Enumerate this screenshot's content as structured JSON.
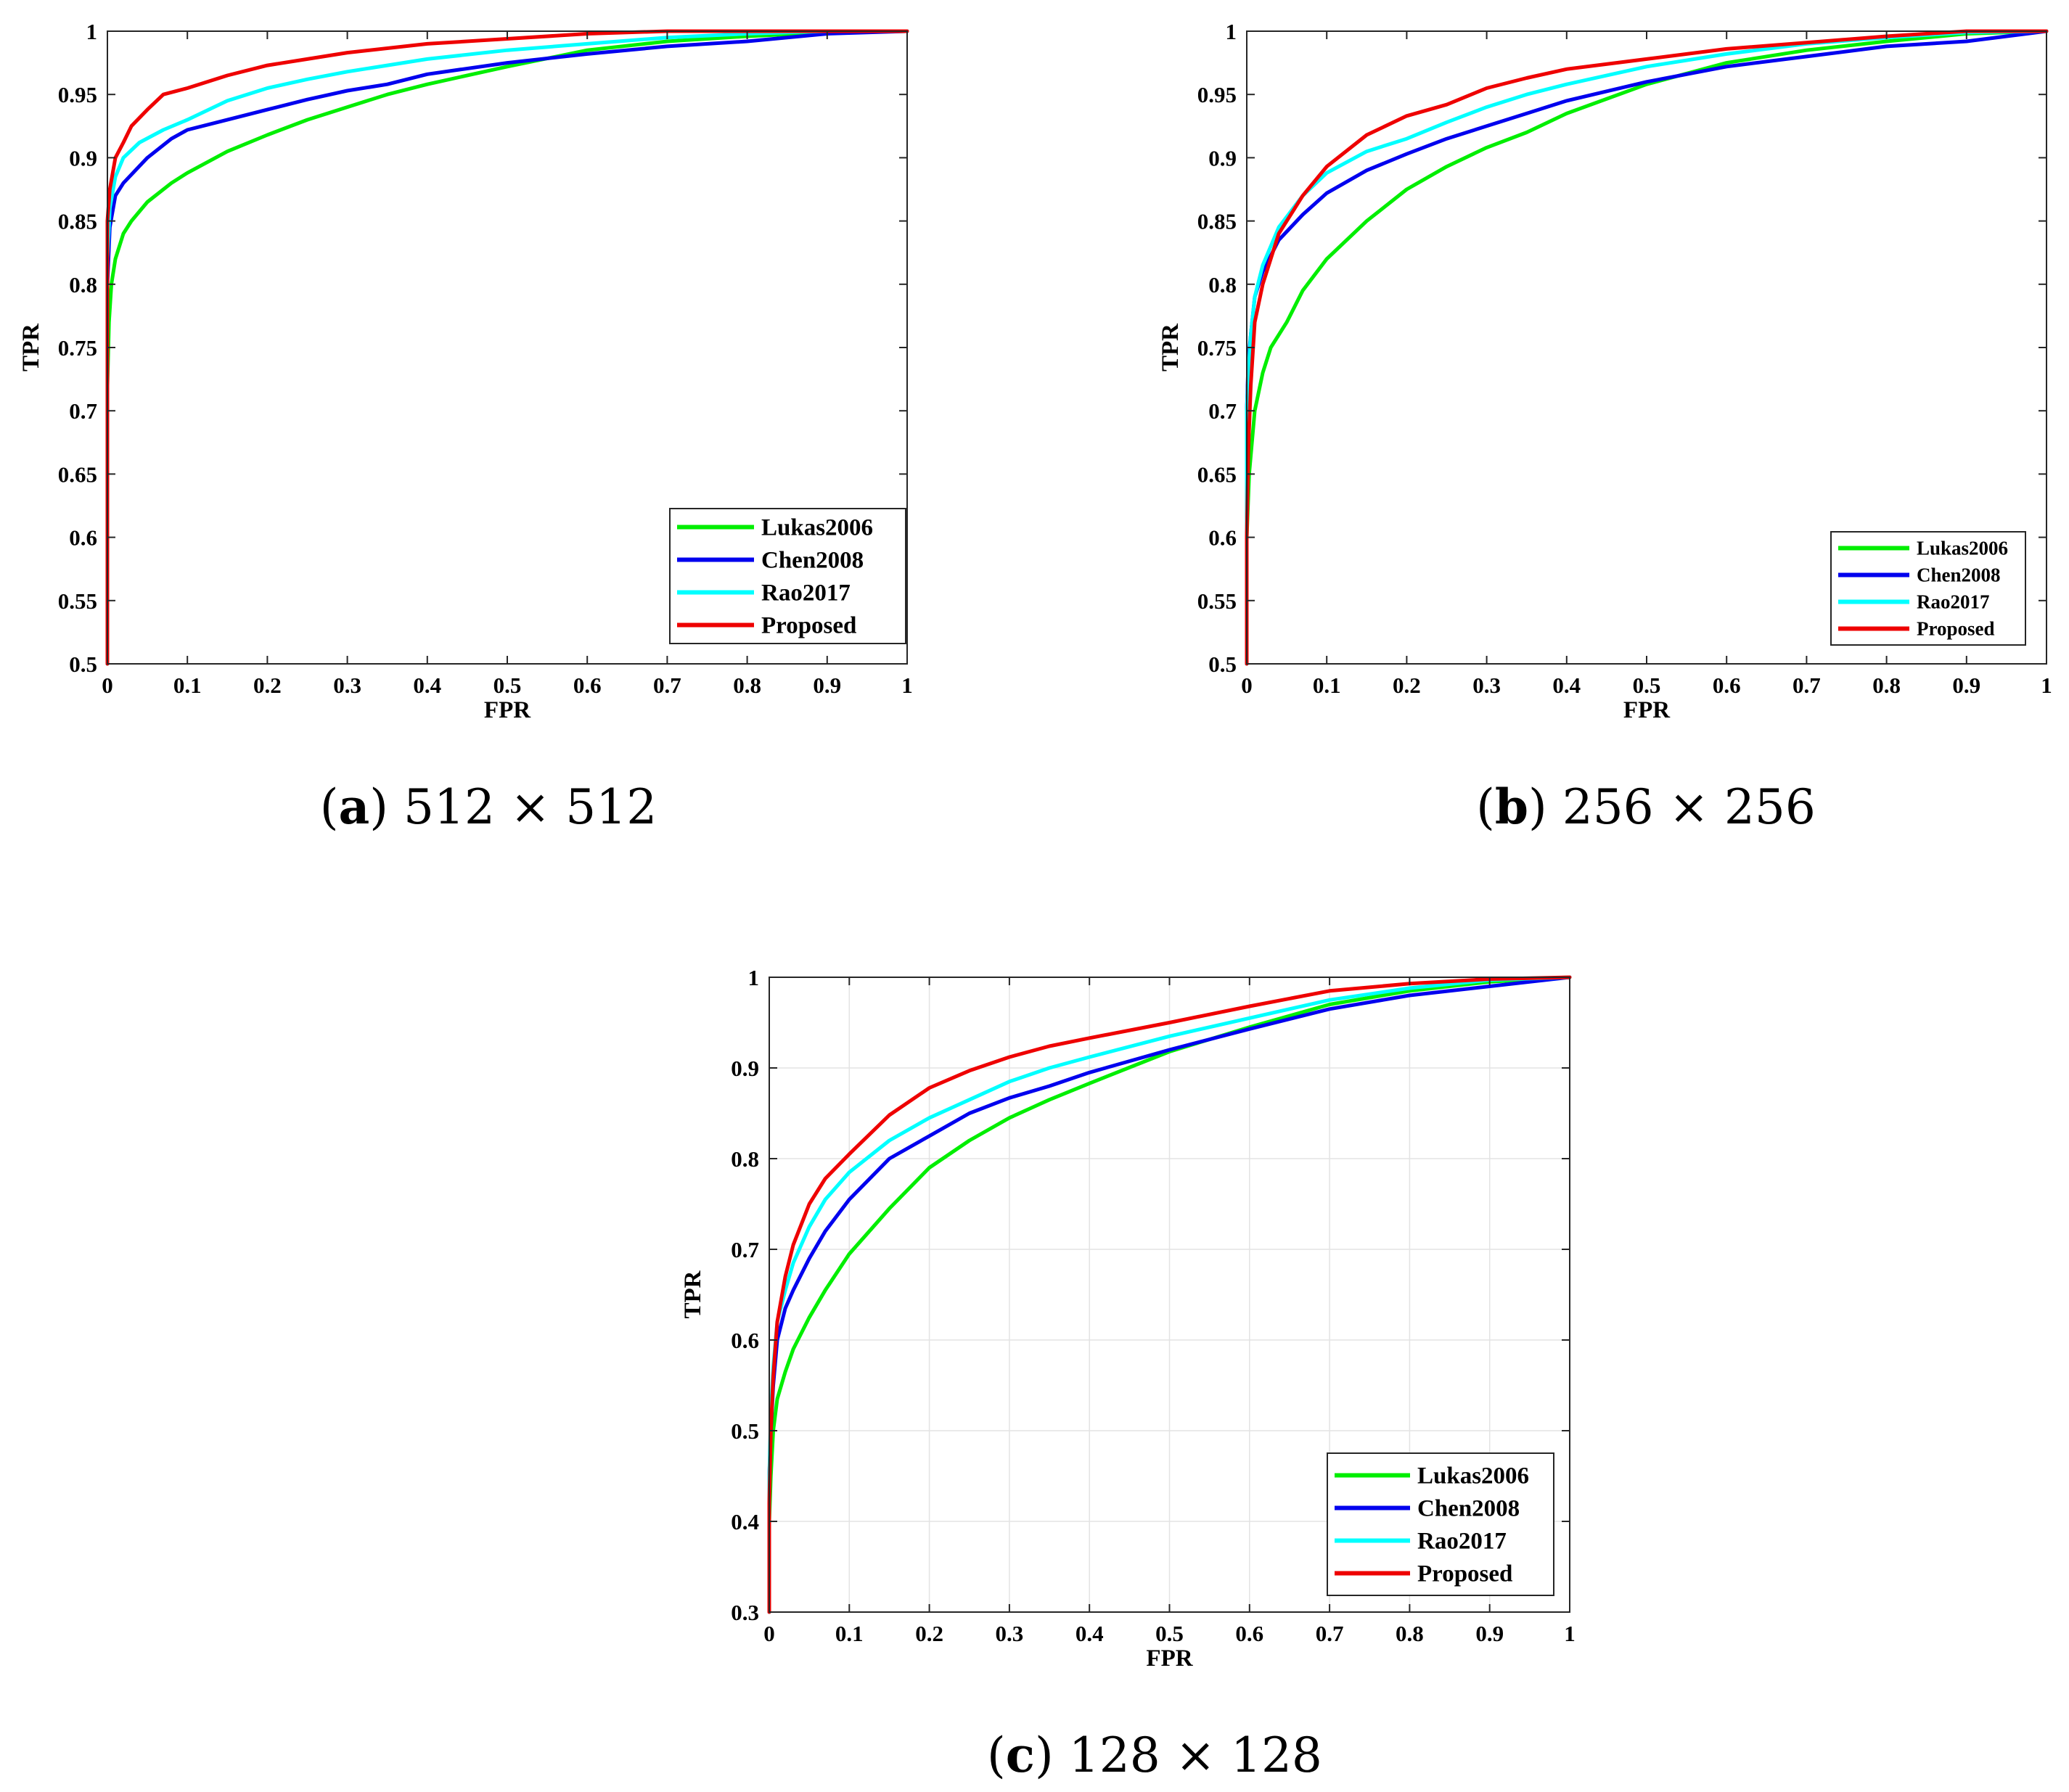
{
  "figure": {
    "series_colors": {
      "Lukas2006": "#00ee00",
      "Chen2008": "#0000ee",
      "Rao2017": "#00ffff",
      "Proposed": "#ee0000"
    }
  },
  "chart_data": [
    {
      "type": "line",
      "caption_letter": "a",
      "caption_text": "512 × 512",
      "xlabel": "FPR",
      "ylabel": "TPR",
      "xlim": [
        0,
        1
      ],
      "ylim": [
        0.5,
        1
      ],
      "grid": false,
      "legend_position": "bottom-right",
      "x_ticks": [
        "0",
        "0.1",
        "0.2",
        "0.3",
        "0.4",
        "0.5",
        "0.6",
        "0.7",
        "0.8",
        "0.9",
        "1"
      ],
      "y_ticks": [
        "0.5",
        "0.55",
        "0.6",
        "0.65",
        "0.7",
        "0.75",
        "0.8",
        "0.85",
        "0.9",
        "0.95",
        "1"
      ],
      "series": [
        {
          "name": "Lukas2006",
          "color": "#00ee00",
          "x": [
            0,
            0,
            0.002,
            0.005,
            0.01,
            0.02,
            0.03,
            0.05,
            0.08,
            0.1,
            0.15,
            0.2,
            0.25,
            0.3,
            0.35,
            0.4,
            0.5,
            0.6,
            0.7,
            0.8,
            0.9,
            1
          ],
          "y": [
            0.5,
            0.72,
            0.77,
            0.8,
            0.82,
            0.84,
            0.85,
            0.865,
            0.88,
            0.888,
            0.905,
            0.918,
            0.93,
            0.94,
            0.95,
            0.958,
            0.972,
            0.985,
            0.992,
            0.996,
            0.999,
            1
          ]
        },
        {
          "name": "Chen2008",
          "color": "#0000ee",
          "x": [
            0,
            0,
            0.003,
            0.01,
            0.02,
            0.05,
            0.08,
            0.1,
            0.15,
            0.2,
            0.25,
            0.3,
            0.35,
            0.4,
            0.5,
            0.6,
            0.7,
            0.8,
            0.9,
            1
          ],
          "y": [
            0.5,
            0.8,
            0.845,
            0.87,
            0.88,
            0.9,
            0.915,
            0.922,
            0.93,
            0.938,
            0.946,
            0.953,
            0.958,
            0.966,
            0.975,
            0.982,
            0.988,
            0.992,
            0.998,
            1
          ]
        },
        {
          "name": "Rao2017",
          "color": "#00ffff",
          "x": [
            0,
            0,
            0.003,
            0.01,
            0.02,
            0.04,
            0.07,
            0.1,
            0.15,
            0.2,
            0.25,
            0.3,
            0.4,
            0.5,
            0.6,
            0.7,
            0.8,
            0.9,
            1
          ],
          "y": [
            0.5,
            0.82,
            0.86,
            0.885,
            0.9,
            0.912,
            0.922,
            0.93,
            0.945,
            0.955,
            0.962,
            0.968,
            0.978,
            0.985,
            0.99,
            0.995,
            0.998,
            1,
            1
          ]
        },
        {
          "name": "Proposed",
          "color": "#ee0000",
          "x": [
            0,
            0,
            0.003,
            0.01,
            0.02,
            0.03,
            0.05,
            0.07,
            0.1,
            0.15,
            0.2,
            0.25,
            0.3,
            0.4,
            0.5,
            0.6,
            0.7,
            0.8,
            1
          ],
          "y": [
            0.5,
            0.85,
            0.875,
            0.9,
            0.912,
            0.925,
            0.938,
            0.95,
            0.955,
            0.965,
            0.973,
            0.978,
            0.983,
            0.99,
            0.994,
            0.998,
            1,
            1,
            1
          ]
        }
      ]
    },
    {
      "type": "line",
      "caption_letter": "b",
      "caption_text": "256 × 256",
      "xlabel": "FPR",
      "ylabel": "TPR",
      "xlim": [
        0,
        1
      ],
      "ylim": [
        0.5,
        1
      ],
      "grid": false,
      "legend_position": "bottom-right",
      "x_ticks": [
        "0",
        "0.1",
        "0.2",
        "0.3",
        "0.4",
        "0.5",
        "0.6",
        "0.7",
        "0.8",
        "0.9",
        "1"
      ],
      "y_ticks": [
        "0.5",
        "0.55",
        "0.6",
        "0.65",
        "0.7",
        "0.75",
        "0.8",
        "0.85",
        "0.9",
        "0.95",
        "1"
      ],
      "series": [
        {
          "name": "Lukas2006",
          "color": "#00ee00",
          "x": [
            0,
            0,
            0.003,
            0.01,
            0.02,
            0.03,
            0.05,
            0.07,
            0.1,
            0.15,
            0.2,
            0.25,
            0.3,
            0.35,
            0.4,
            0.5,
            0.6,
            0.7,
            0.8,
            0.9,
            1
          ],
          "y": [
            0.5,
            0.6,
            0.65,
            0.7,
            0.73,
            0.75,
            0.77,
            0.795,
            0.82,
            0.85,
            0.875,
            0.893,
            0.908,
            0.92,
            0.935,
            0.958,
            0.975,
            0.985,
            0.992,
            0.998,
            1
          ]
        },
        {
          "name": "Chen2008",
          "color": "#0000ee",
          "x": [
            0,
            0,
            0.002,
            0.005,
            0.01,
            0.02,
            0.04,
            0.07,
            0.1,
            0.15,
            0.2,
            0.25,
            0.3,
            0.35,
            0.4,
            0.5,
            0.6,
            0.7,
            0.8,
            0.9,
            1
          ],
          "y": [
            0.5,
            0.7,
            0.74,
            0.76,
            0.79,
            0.81,
            0.835,
            0.855,
            0.872,
            0.89,
            0.903,
            0.915,
            0.925,
            0.935,
            0.945,
            0.96,
            0.972,
            0.98,
            0.988,
            0.992,
            1
          ]
        },
        {
          "name": "Rao2017",
          "color": "#00ffff",
          "x": [
            0,
            0,
            0.002,
            0.005,
            0.01,
            0.02,
            0.04,
            0.07,
            0.1,
            0.15,
            0.2,
            0.25,
            0.3,
            0.35,
            0.4,
            0.5,
            0.6,
            0.7,
            0.8,
            0.9,
            1
          ],
          "y": [
            0.5,
            0.7,
            0.73,
            0.76,
            0.79,
            0.815,
            0.845,
            0.87,
            0.888,
            0.905,
            0.915,
            0.928,
            0.94,
            0.95,
            0.958,
            0.972,
            0.982,
            0.99,
            0.995,
            0.999,
            1
          ]
        },
        {
          "name": "Proposed",
          "color": "#ee0000",
          "x": [
            0,
            0,
            0.002,
            0.005,
            0.01,
            0.02,
            0.04,
            0.07,
            0.1,
            0.15,
            0.2,
            0.25,
            0.3,
            0.35,
            0.4,
            0.5,
            0.6,
            0.7,
            0.8,
            0.9,
            1
          ],
          "y": [
            0.5,
            0.6,
            0.67,
            0.72,
            0.77,
            0.8,
            0.84,
            0.87,
            0.893,
            0.918,
            0.933,
            0.942,
            0.955,
            0.963,
            0.97,
            0.978,
            0.986,
            0.991,
            0.996,
            1,
            1
          ]
        }
      ]
    },
    {
      "type": "line",
      "caption_letter": "c",
      "caption_text": "128 × 128",
      "xlabel": "FPR",
      "ylabel": "TPR",
      "xlim": [
        0,
        1
      ],
      "ylim": [
        0.3,
        1
      ],
      "grid": true,
      "legend_position": "bottom-right",
      "x_ticks": [
        "0",
        "0.1",
        "0.2",
        "0.3",
        "0.4",
        "0.5",
        "0.6",
        "0.7",
        "0.8",
        "0.9",
        "1"
      ],
      "y_ticks": [
        "0.3",
        "0.4",
        "0.5",
        "0.6",
        "0.7",
        "0.8",
        "0.9",
        "1"
      ],
      "series": [
        {
          "name": "Lukas2006",
          "color": "#00ee00",
          "x": [
            0,
            0,
            0.002,
            0.005,
            0.01,
            0.02,
            0.03,
            0.05,
            0.07,
            0.1,
            0.15,
            0.2,
            0.25,
            0.3,
            0.35,
            0.4,
            0.5,
            0.6,
            0.7,
            0.8,
            0.9,
            1
          ],
          "y": [
            0.3,
            0.4,
            0.45,
            0.5,
            0.535,
            0.565,
            0.59,
            0.625,
            0.655,
            0.695,
            0.745,
            0.79,
            0.82,
            0.845,
            0.865,
            0.883,
            0.918,
            0.945,
            0.97,
            0.985,
            0.995,
            1
          ]
        },
        {
          "name": "Chen2008",
          "color": "#0000ee",
          "x": [
            0,
            0,
            0.002,
            0.005,
            0.01,
            0.02,
            0.03,
            0.05,
            0.07,
            0.1,
            0.15,
            0.2,
            0.25,
            0.3,
            0.35,
            0.4,
            0.5,
            0.6,
            0.7,
            0.8,
            0.9,
            1
          ],
          "y": [
            0.3,
            0.45,
            0.5,
            0.55,
            0.6,
            0.635,
            0.655,
            0.69,
            0.72,
            0.755,
            0.8,
            0.825,
            0.85,
            0.867,
            0.88,
            0.895,
            0.92,
            0.943,
            0.965,
            0.98,
            0.99,
            1
          ]
        },
        {
          "name": "Rao2017",
          "color": "#00ffff",
          "x": [
            0,
            0,
            0.002,
            0.005,
            0.01,
            0.02,
            0.03,
            0.05,
            0.07,
            0.1,
            0.15,
            0.2,
            0.25,
            0.3,
            0.35,
            0.4,
            0.5,
            0.6,
            0.7,
            0.8,
            0.9,
            1
          ],
          "y": [
            0.3,
            0.45,
            0.52,
            0.57,
            0.62,
            0.655,
            0.685,
            0.725,
            0.755,
            0.785,
            0.82,
            0.845,
            0.865,
            0.885,
            0.9,
            0.912,
            0.935,
            0.955,
            0.975,
            0.988,
            0.997,
            1
          ]
        },
        {
          "name": "Proposed",
          "color": "#ee0000",
          "x": [
            0,
            0,
            0.002,
            0.005,
            0.01,
            0.02,
            0.03,
            0.05,
            0.07,
            0.1,
            0.15,
            0.2,
            0.25,
            0.3,
            0.35,
            0.4,
            0.5,
            0.6,
            0.7,
            0.8,
            0.9,
            1
          ],
          "y": [
            0.3,
            0.42,
            0.5,
            0.56,
            0.62,
            0.67,
            0.705,
            0.75,
            0.778,
            0.805,
            0.848,
            0.878,
            0.897,
            0.912,
            0.924,
            0.933,
            0.95,
            0.968,
            0.985,
            0.993,
            0.998,
            1
          ]
        }
      ]
    }
  ]
}
